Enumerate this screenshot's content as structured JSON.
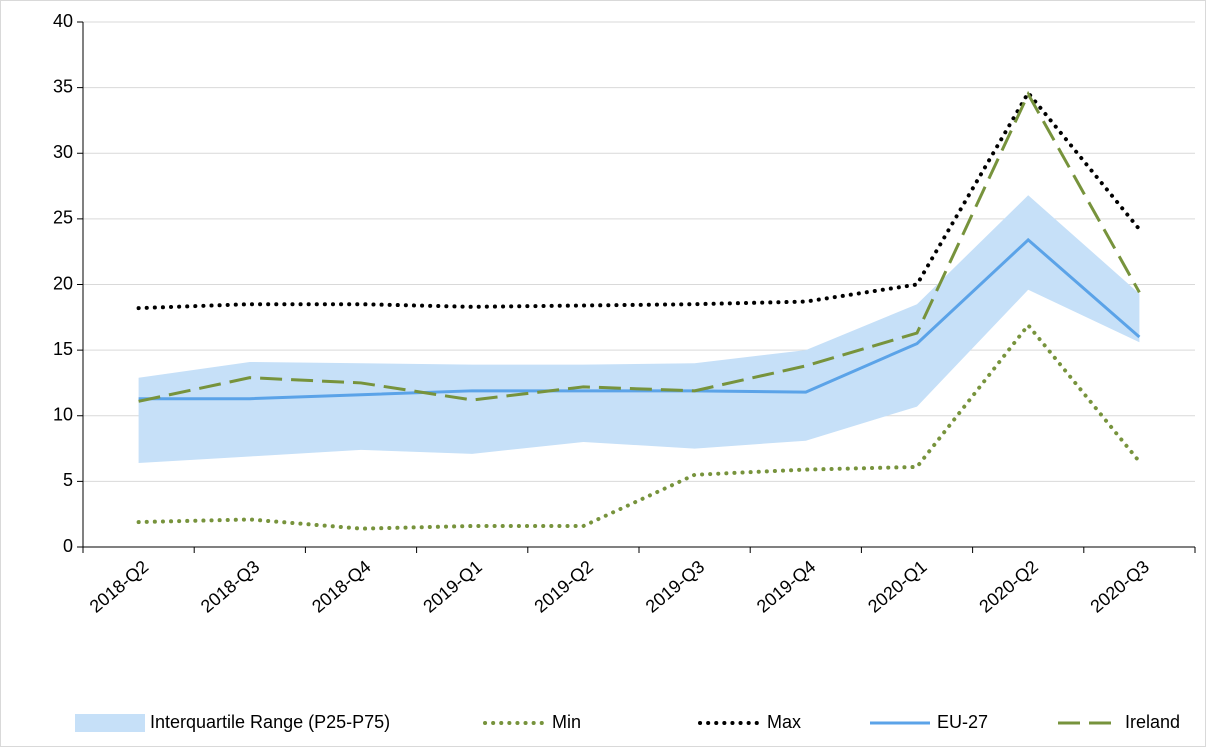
{
  "chart_data": {
    "type": "line",
    "categories": [
      "2018-Q2",
      "2018-Q3",
      "2018-Q4",
      "2019-Q1",
      "2019-Q2",
      "2019-Q3",
      "2019-Q4",
      "2020-Q1",
      "2020-Q2",
      "2020-Q3"
    ],
    "band": {
      "name": "Interquartile Range (P25-P75)",
      "color": "#c6e0f8",
      "lower": [
        6.4,
        6.9,
        7.4,
        7.1,
        8.0,
        7.5,
        8.1,
        10.7,
        19.6,
        15.6
      ],
      "upper": [
        12.9,
        14.1,
        14.0,
        13.9,
        13.9,
        14.0,
        15.0,
        18.5,
        26.8,
        19.3
      ]
    },
    "series": [
      {
        "name": "Min",
        "color": "#77933c",
        "style": "dotted",
        "values": [
          1.9,
          2.1,
          1.4,
          1.6,
          1.6,
          5.5,
          5.9,
          6.1,
          16.9,
          6.5
        ]
      },
      {
        "name": "Max",
        "color": "#000000",
        "style": "dotted",
        "values": [
          18.2,
          18.5,
          18.5,
          18.3,
          18.4,
          18.5,
          18.7,
          20.0,
          34.6,
          24.2
        ]
      },
      {
        "name": "EU-27",
        "color": "#5ba3e8",
        "style": "solid",
        "values": [
          11.3,
          11.3,
          11.6,
          11.9,
          11.9,
          11.9,
          11.8,
          15.5,
          23.4,
          16.0
        ]
      },
      {
        "name": "Ireland",
        "color": "#77933c",
        "style": "dashed",
        "values": [
          11.1,
          12.9,
          12.5,
          11.2,
          12.2,
          11.9,
          13.8,
          16.3,
          34.5,
          19.4
        ]
      }
    ],
    "ylim": [
      0,
      40
    ],
    "yticks": [
      0,
      5,
      10,
      15,
      20,
      25,
      30,
      35,
      40
    ],
    "grid": true,
    "legend": "bottom"
  }
}
